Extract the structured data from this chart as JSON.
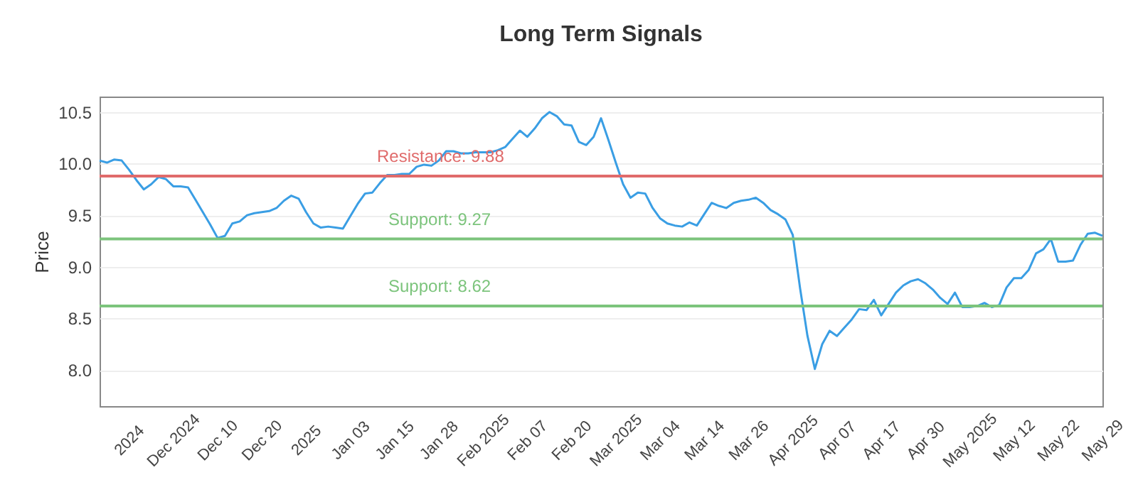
{
  "chart_data": {
    "type": "line",
    "title": "Long Term Signals",
    "ylabel": "Price",
    "categories": [
      null,
      null,
      null,
      null,
      "2024",
      null,
      null,
      null,
      null,
      null,
      "Dec 2024",
      null,
      null,
      null,
      null,
      null,
      "Dec 10",
      null,
      null,
      null,
      null,
      null,
      "Dec 20",
      null,
      null,
      null,
      null,
      null,
      "2025",
      null,
      null,
      null,
      null,
      null,
      "Jan 03",
      null,
      null,
      null,
      null,
      null,
      "Jan 15",
      null,
      null,
      null,
      null,
      null,
      "Jan 28",
      null,
      null,
      null,
      null,
      null,
      "Feb 2025",
      null,
      null,
      null,
      null,
      null,
      "Feb 07",
      null,
      null,
      null,
      null,
      null,
      "Feb 20",
      null,
      null,
      null,
      null,
      null,
      "Mar 2025",
      null,
      null,
      null,
      null,
      null,
      "Mar 04",
      null,
      null,
      null,
      null,
      null,
      "Mar 14",
      null,
      null,
      null,
      null,
      null,
      "Mar 26",
      null,
      null,
      null,
      null,
      null,
      "Apr 2025",
      null,
      null,
      null,
      null,
      null,
      "Apr 07",
      null,
      null,
      null,
      null,
      null,
      "Apr 17",
      null,
      null,
      null,
      null,
      null,
      "Apr 30",
      null,
      null,
      null,
      null,
      null,
      "May 2025",
      null,
      null,
      null,
      null,
      null,
      "May 12",
      null,
      null,
      null,
      null,
      null,
      "May 22",
      null,
      null,
      null,
      null,
      null,
      "May 29"
    ],
    "series": [
      {
        "color": "#3a9ee4",
        "values": [
          10.03,
          10.01,
          10.04,
          10.03,
          9.94,
          9.84,
          9.75,
          9.8,
          9.87,
          9.85,
          9.78,
          9.78,
          9.77,
          9.65,
          9.53,
          9.41,
          9.28,
          9.3,
          9.42,
          9.44,
          9.5,
          9.52,
          9.53,
          9.54,
          9.57,
          9.64,
          9.69,
          9.66,
          9.53,
          9.42,
          9.38,
          9.39,
          9.38,
          9.37,
          9.49,
          9.61,
          9.71,
          9.72,
          9.81,
          9.89,
          9.89,
          9.9,
          9.9,
          9.97,
          9.99,
          9.98,
          10.03,
          10.12,
          10.12,
          10.1,
          10.1,
          10.11,
          10.11,
          10.11,
          10.13,
          10.16,
          10.24,
          10.32,
          10.26,
          10.34,
          10.44,
          10.5,
          10.46,
          10.38,
          10.37,
          10.21,
          10.18,
          10.26,
          10.44,
          10.23,
          10.01,
          9.8,
          9.67,
          9.72,
          9.71,
          9.57,
          9.47,
          9.42,
          9.4,
          9.39,
          9.43,
          9.4,
          9.51,
          9.62,
          9.59,
          9.57,
          9.62,
          9.64,
          9.65,
          9.67,
          9.62,
          9.55,
          9.51,
          9.46,
          9.31,
          8.79,
          8.33,
          8.01,
          8.25,
          8.38,
          8.33,
          8.41,
          8.49,
          8.59,
          8.58,
          8.68,
          8.53,
          8.64,
          8.75,
          8.82,
          8.86,
          8.88,
          8.84,
          8.78,
          8.7,
          8.64,
          8.75,
          8.61,
          8.61,
          8.62,
          8.65,
          8.61,
          8.63,
          8.8,
          8.89,
          8.89,
          8.97,
          9.13,
          9.17,
          9.27,
          9.05,
          9.05,
          9.06,
          9.21,
          9.32,
          9.33,
          9.3
        ]
      }
    ],
    "ylim": [
      7.65,
      10.65
    ],
    "yticks": [
      {
        "value": 8,
        "label": "8.0"
      },
      {
        "value": 8.5,
        "label": "8.5"
      },
      {
        "value": 9,
        "label": "9.0"
      },
      {
        "value": 9.5,
        "label": "9.5"
      },
      {
        "value": 10,
        "label": "10.0"
      },
      {
        "value": 10.5,
        "label": "10.5"
      }
    ],
    "grid": "y",
    "legend": false,
    "line_style": "solid",
    "marker": "none",
    "ref_lines": [
      {
        "axis": "y",
        "value": 9.88,
        "label": "Resistance: 9.88",
        "color": "#e06b6b"
      },
      {
        "axis": "y",
        "value": 9.27,
        "label": "Support: 9.27",
        "color": "#7cc47c"
      },
      {
        "axis": "y",
        "value": 8.62,
        "label": "Support: 8.62",
        "color": "#7cc47c"
      }
    ]
  }
}
